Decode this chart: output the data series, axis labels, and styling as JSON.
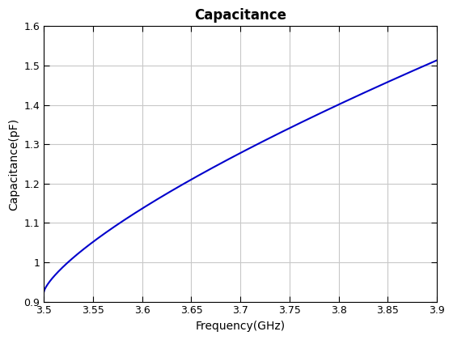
{
  "title": "Capacitance",
  "xlabel": "Frequency(GHz)",
  "ylabel": "Capacitance(pF)",
  "xlim": [
    3.5,
    3.9
  ],
  "ylim": [
    0.9,
    1.6
  ],
  "xticks": [
    3.5,
    3.55,
    3.6,
    3.65,
    3.7,
    3.75,
    3.8,
    3.85,
    3.9
  ],
  "xtick_labels": [
    "3.5",
    "3.55",
    "3.6",
    "3.65",
    "3.7",
    "3.75",
    "3.8",
    "3.85",
    "3.9"
  ],
  "yticks": [
    0.9,
    1.0,
    1.1,
    1.2,
    1.3,
    1.4,
    1.5,
    1.6
  ],
  "ytick_labels": [
    "0.9",
    "1",
    "1.1",
    "1.2",
    "1.3",
    "1.4",
    "1.5",
    "1.6"
  ],
  "line_color": "#0000CC",
  "line_width": 1.5,
  "background_color": "#ffffff",
  "grid_color": "#c8c8c8",
  "title_fontsize": 12,
  "label_fontsize": 10,
  "tick_fontsize": 9,
  "curve_a": 1.157,
  "curve_p": 0.738,
  "curve_base": 0.925,
  "curve_f0": 3.5
}
